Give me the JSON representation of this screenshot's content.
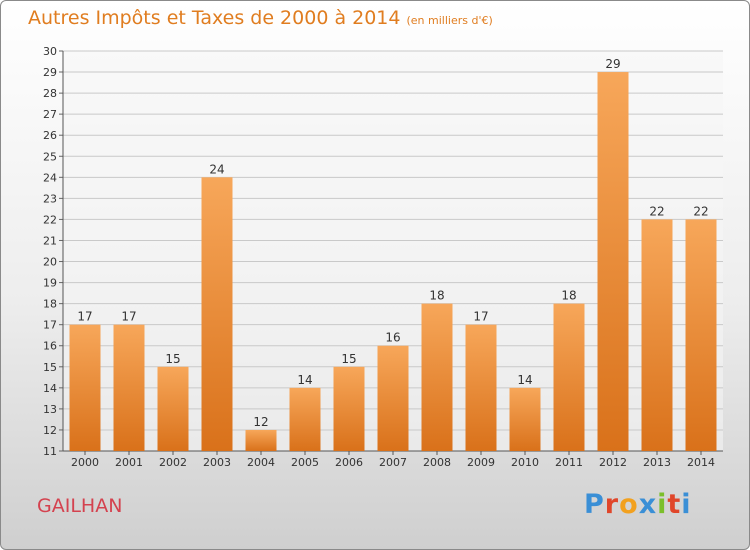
{
  "header": {
    "title": "Autres Impôts et Taxes de 2000 à 2014",
    "subtitle": "(en milliers d'€)"
  },
  "footer": {
    "commune": "GAILHAN",
    "brand_letters": [
      "P",
      "r",
      "o",
      "x",
      "i",
      "t",
      "i"
    ],
    "brand_colors": [
      "#3a8fd6",
      "#e0462a",
      "#f2a11f",
      "#3a8fd6",
      "#7bbf2a",
      "#e0462a",
      "#3a8fd6"
    ]
  },
  "colors": {
    "title": "#e07d20",
    "commune": "#d4424f",
    "bar_top": "#f7a75a",
    "bar_bottom": "#d9711a"
  },
  "chart_data": {
    "type": "bar",
    "categories": [
      "2000",
      "2001",
      "2002",
      "2003",
      "2004",
      "2005",
      "2006",
      "2007",
      "2008",
      "2009",
      "2010",
      "2011",
      "2012",
      "2013",
      "2014"
    ],
    "values": [
      17,
      17,
      15,
      24,
      12,
      14,
      15,
      16,
      18,
      17,
      14,
      18,
      29,
      22,
      22
    ],
    "ylim": [
      11,
      30
    ],
    "yticks": [
      11,
      12,
      13,
      14,
      15,
      16,
      17,
      18,
      19,
      20,
      21,
      22,
      23,
      24,
      25,
      26,
      27,
      28,
      29,
      30
    ],
    "grid": true,
    "data_labels": true
  }
}
